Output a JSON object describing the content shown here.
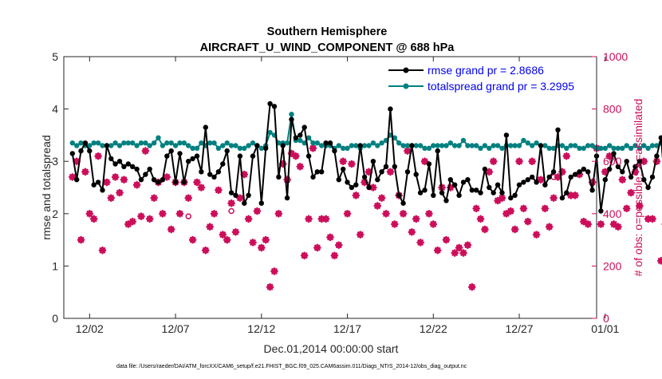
{
  "chart_data": {
    "type": "line",
    "title": "Southern Hemisphere",
    "subtitle": "AIRCRAFT_U_WIND_COMPONENT @ 688 hPa",
    "xlabel": "Dec.01,2014 00:00:00 start",
    "ylabel_left": "rmse and totalspread",
    "ylabel_right": "# of obs: o=possible; ∗=assimilated",
    "footnote": "data file: /Users/raeder/DAI/ATM_forcXX/CAM6_setup/f.e21.FHIST_BGC.f09_025.CAM6assim.011/Diags_NTrS_2014-12/obs_diag_output.nc",
    "xlim": [
      0.5,
      31.5
    ],
    "ylim_left": [
      0,
      5
    ],
    "ylim_right": [
      0,
      1000
    ],
    "x_ticks": [
      2,
      7,
      12,
      17,
      22,
      27,
      32
    ],
    "x_tick_labels": [
      "12/02",
      "12/07",
      "12/12",
      "12/17",
      "12/22",
      "12/27",
      "01/01"
    ],
    "y_ticks_left": [
      0,
      1,
      2,
      3,
      4,
      5
    ],
    "y_tick_labels_left": [
      "0",
      "1",
      "2",
      "3",
      "4",
      "5"
    ],
    "y_ticks_right": [
      0,
      200,
      400,
      600,
      800,
      1000
    ],
    "y_tick_labels_right": [
      "0",
      "200",
      "400",
      "600",
      "800",
      "1000"
    ],
    "x_step_days": 0.25,
    "series": [
      {
        "name": "rmse grand pr = 2.8686",
        "axis": "left",
        "color": "#000000",
        "values": [
          3.15,
          2.65,
          3.2,
          3.35,
          3.2,
          2.55,
          2.6,
          2.45,
          3.3,
          3.05,
          2.95,
          3.0,
          2.9,
          2.95,
          2.9,
          2.85,
          2.65,
          2.75,
          2.85,
          2.65,
          2.6,
          2.65,
          3.1,
          3.2,
          2.6,
          3.15,
          2.6,
          3.0,
          3.05,
          3.1,
          2.8,
          3.65,
          2.75,
          2.7,
          2.8,
          2.95,
          3.2,
          2.4,
          2.35,
          3.1,
          2.2,
          2.35,
          3.1,
          3.3,
          2.2,
          3.25,
          4.1,
          4.05,
          2.7,
          3.3,
          2.3,
          3.8,
          3.45,
          3.5,
          3.65,
          3.1,
          2.7,
          2.8,
          2.8,
          3.35,
          3.35,
          3.2,
          2.65,
          2.85,
          2.6,
          2.5,
          2.55,
          3.3,
          2.7,
          2.5,
          3.0,
          2.65,
          2.8,
          2.9,
          4.0,
          2.9,
          2.35,
          2.2,
          2.8,
          3.3,
          2.75,
          2.4,
          2.45,
          2.95,
          2.35,
          3.2,
          2.4,
          2.25,
          2.65,
          2.55,
          2.35,
          2.6,
          2.65,
          2.45,
          2.45,
          2.4,
          2.85,
          2.5,
          2.4,
          2.55,
          2.4,
          3.5,
          2.3,
          2.35,
          2.55,
          2.6,
          2.65,
          2.7,
          2.6,
          3.3,
          2.55,
          2.7,
          2.8,
          3.6,
          2.3,
          2.4,
          2.7,
          2.75,
          2.8,
          2.85,
          2.8,
          2.45,
          3.1,
          2.05,
          2.65,
          2.85,
          3.15,
          2.9,
          2.8,
          3.0,
          2.7,
          2.9,
          3.0,
          2.65,
          2.5,
          2.7,
          3.1,
          3.45,
          2.45,
          2.4,
          2.35,
          2.2,
          2.5,
          2.6,
          4.3,
          2.55,
          2.75,
          2.8,
          2.9,
          2.6,
          2.65,
          2.9,
          2.95,
          3.0,
          2.85,
          2.35,
          2.95
        ]
      },
      {
        "name": "totalspread grand pr = 3.2995",
        "axis": "left",
        "color": "#008080",
        "values": [
          3.35,
          3.3,
          3.35,
          3.3,
          3.3,
          3.35,
          3.35,
          3.3,
          3.3,
          3.3,
          3.35,
          3.3,
          3.35,
          3.35,
          3.35,
          3.3,
          3.35,
          3.35,
          3.3,
          3.35,
          3.45,
          3.3,
          3.35,
          3.35,
          3.3,
          3.35,
          3.35,
          3.3,
          3.25,
          3.25,
          3.35,
          3.3,
          3.35,
          3.35,
          3.25,
          3.3,
          3.35,
          3.3,
          3.3,
          3.25,
          3.25,
          3.3,
          3.35,
          3.3,
          3.25,
          3.3,
          3.55,
          3.5,
          3.35,
          3.35,
          3.35,
          3.9,
          3.4,
          3.4,
          3.35,
          3.45,
          3.35,
          3.35,
          3.3,
          3.3,
          3.3,
          3.25,
          3.3,
          3.25,
          3.25,
          3.3,
          3.3,
          3.25,
          3.3,
          3.3,
          3.35,
          3.3,
          3.35,
          3.4,
          3.5,
          3.45,
          3.35,
          3.3,
          3.3,
          3.3,
          3.3,
          3.3,
          3.25,
          3.25,
          3.3,
          3.3,
          3.3,
          3.3,
          3.35,
          3.3,
          3.3,
          3.4,
          3.3,
          3.3,
          3.3,
          3.25,
          3.3,
          3.25,
          3.3,
          3.3,
          3.25,
          3.3,
          3.3,
          3.3,
          3.3,
          3.4,
          3.35,
          3.3,
          3.35,
          3.3,
          3.3,
          3.25,
          3.25,
          3.3,
          3.3,
          3.25,
          3.3,
          3.3,
          3.25,
          3.25,
          3.3,
          3.3,
          3.25,
          3.25,
          3.25,
          3.3,
          3.25,
          3.25,
          3.25,
          3.3,
          3.25,
          3.3,
          3.25,
          3.3,
          3.25,
          3.3,
          3.3,
          3.35,
          3.3,
          3.3,
          3.3,
          3.25,
          3.3,
          3.35,
          3.5,
          3.3,
          3.25,
          3.3,
          3.3,
          3.3,
          3.3,
          3.35,
          3.3,
          3.3,
          3.25,
          3.25,
          3.25
        ]
      },
      {
        "name": "observations assimilated",
        "axis": "right",
        "color": "#cc0e5a",
        "values": [
          540,
          600,
          300,
          560,
          400,
          380,
          620,
          260,
          520,
          460,
          540,
          480,
          530,
          360,
          370,
          510,
          390,
          640,
          380,
          460,
          520,
          400,
          540,
          340,
          520,
          400,
          520,
          460,
          300,
          520,
          500,
          260,
          350,
          400,
          490,
          320,
          300,
          440,
          330,
          460,
          550,
          380,
          290,
          410,
          270,
          300,
          120,
          180,
          400,
          590,
          530,
          630,
          620,
          580,
          240,
          380,
          650,
          270,
          380,
          380,
          310,
          240,
          280,
          600,
          400,
          590,
          470,
          320,
          520,
          560,
          500,
          430,
          460,
          400,
          560,
          360,
          470,
          400,
          640,
          330,
          380,
          290,
          600,
          400,
          360,
          260,
          500,
          300,
          500,
          250,
          270,
          250,
          280,
          120,
          420,
          380,
          340,
          560,
          600,
          450,
          460,
          400,
          410,
          340,
          600,
          420,
          370,
          600,
          320,
          530,
          420,
          350,
          460,
          540,
          560,
          620,
          470,
          470,
          550,
          370,
          360,
          520,
          650,
          360,
          560,
          620,
          360,
          350,
          530,
          420,
          480,
          560,
          430,
          600,
          380,
          380,
          600,
          220,
          360,
          410,
          500,
          340,
          320,
          580,
          560,
          400,
          300,
          560,
          540,
          420,
          610,
          540,
          590,
          470,
          320,
          310,
          0
        ]
      },
      {
        "name": "observations possible",
        "axis": "right",
        "color": "#cc0e5a",
        "marker": "open-circle",
        "points": [
          [
            7.5,
            520
          ],
          [
            7.75,
            390
          ],
          [
            10.25,
            410
          ],
          [
            29.0,
            540
          ]
        ]
      }
    ],
    "legend": {
      "location": "top-right",
      "entries": [
        "rmse grand pr = 2.8686",
        "totalspread grand pr = 3.2995"
      ],
      "text_color": "#0000ee"
    }
  }
}
